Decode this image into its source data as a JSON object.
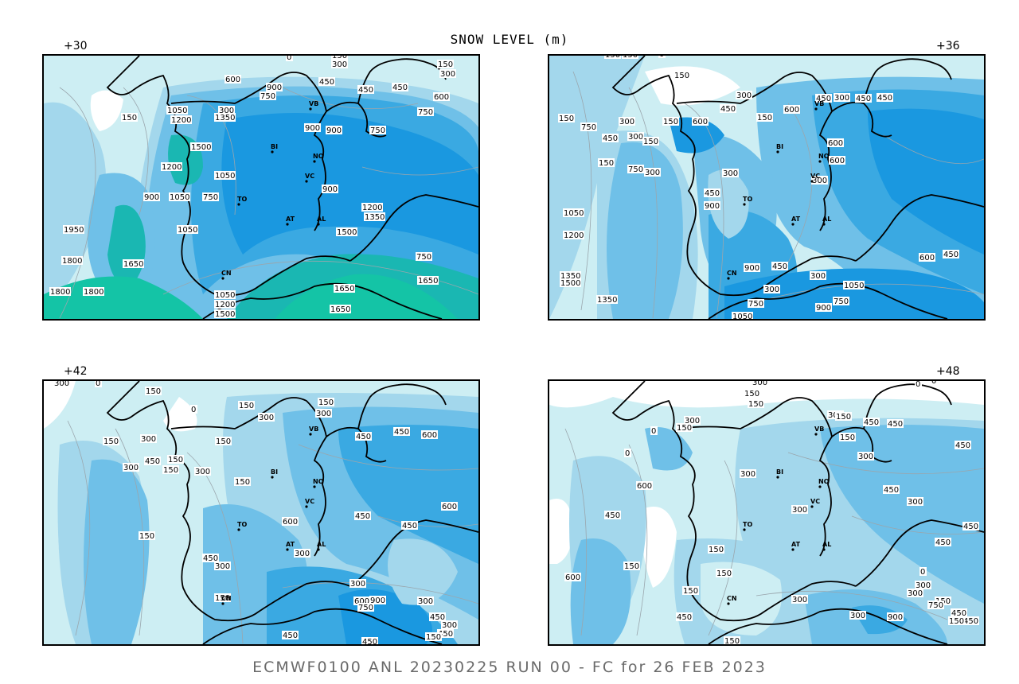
{
  "title": "SNOW LEVEL (m)",
  "footer": "ECMWF0100 ANL 20230225 RUN 00 - FC for 26 FEB 2023",
  "colors": {
    "level_0": "#ffffff",
    "level_1": "#cdeef3",
    "level_2": "#a3d7ec",
    "level_3": "#6fc0e8",
    "level_4": "#3aa9e2",
    "level_5": "#1a98e0",
    "level_6": "#1ab7b2",
    "level_7": "#14c4a6"
  },
  "panels": [
    {
      "lead": "+30",
      "labels": [
        "0",
        "150",
        "300",
        "150",
        "300",
        "600",
        "750",
        "450",
        "600",
        "900",
        "750",
        "450",
        "900",
        "150",
        "300",
        "450",
        "900",
        "750",
        "1050",
        "1200",
        "1350",
        "1500",
        "1050",
        "900",
        "750",
        "1200",
        "1050",
        "900",
        "1200",
        "1350",
        "1500",
        "1050",
        "1800",
        "1950",
        "1650",
        "1800",
        "1800",
        "1650",
        "1650",
        "1050",
        "1200",
        "1500",
        "750",
        "1650"
      ],
      "cities": [
        "VB",
        "BI",
        "NO",
        "VC",
        "TO",
        "AT",
        "AL",
        "CN"
      ]
    },
    {
      "lead": "+36",
      "labels": [
        "150",
        "150",
        "0",
        "150",
        "300",
        "150",
        "300",
        "450",
        "600",
        "450",
        "300",
        "450",
        "150",
        "450",
        "150",
        "750",
        "600",
        "300",
        "150",
        "150",
        "750",
        "450",
        "300",
        "300",
        "600",
        "900",
        "1050",
        "1200",
        "1350",
        "1500",
        "300",
        "450",
        "600",
        "300",
        "900",
        "1050",
        "750",
        "450",
        "300",
        "1350",
        "750",
        "1050",
        "900",
        "600",
        "450"
      ],
      "cities": [
        "VB",
        "BI",
        "NO",
        "VC",
        "TO",
        "AT",
        "AL",
        "CN"
      ]
    },
    {
      "lead": "+42",
      "labels": [
        "300",
        "0",
        "150",
        "0",
        "150",
        "150",
        "300",
        "450",
        "600",
        "450",
        "150",
        "300",
        "0",
        "300",
        "150",
        "150",
        "450",
        "150",
        "300",
        "300",
        "150",
        "600",
        "450",
        "300",
        "450",
        "600",
        "300",
        "150",
        "450",
        "300",
        "150",
        "600",
        "750",
        "900",
        "300",
        "450",
        "300",
        "450",
        "150",
        "450",
        "450"
      ],
      "cities": [
        "VB",
        "BI",
        "NO",
        "VC",
        "TO",
        "AT",
        "AL",
        "CN"
      ]
    },
    {
      "lead": "+48",
      "labels": [
        "300",
        "0",
        "150",
        "150",
        "300",
        "150",
        "0",
        "300",
        "450",
        "150",
        "450",
        "300",
        "150",
        "0",
        "450",
        "0",
        "300",
        "450",
        "300",
        "450",
        "600",
        "450",
        "300",
        "150",
        "450",
        "150",
        "0",
        "300",
        "150",
        "600",
        "150",
        "300",
        "150",
        "450",
        "750",
        "900",
        "300",
        "150",
        "300",
        "450",
        "450",
        "150"
      ],
      "cities": [
        "VB",
        "BI",
        "NO",
        "VC",
        "TO",
        "AT",
        "AL",
        "CN"
      ]
    }
  ]
}
